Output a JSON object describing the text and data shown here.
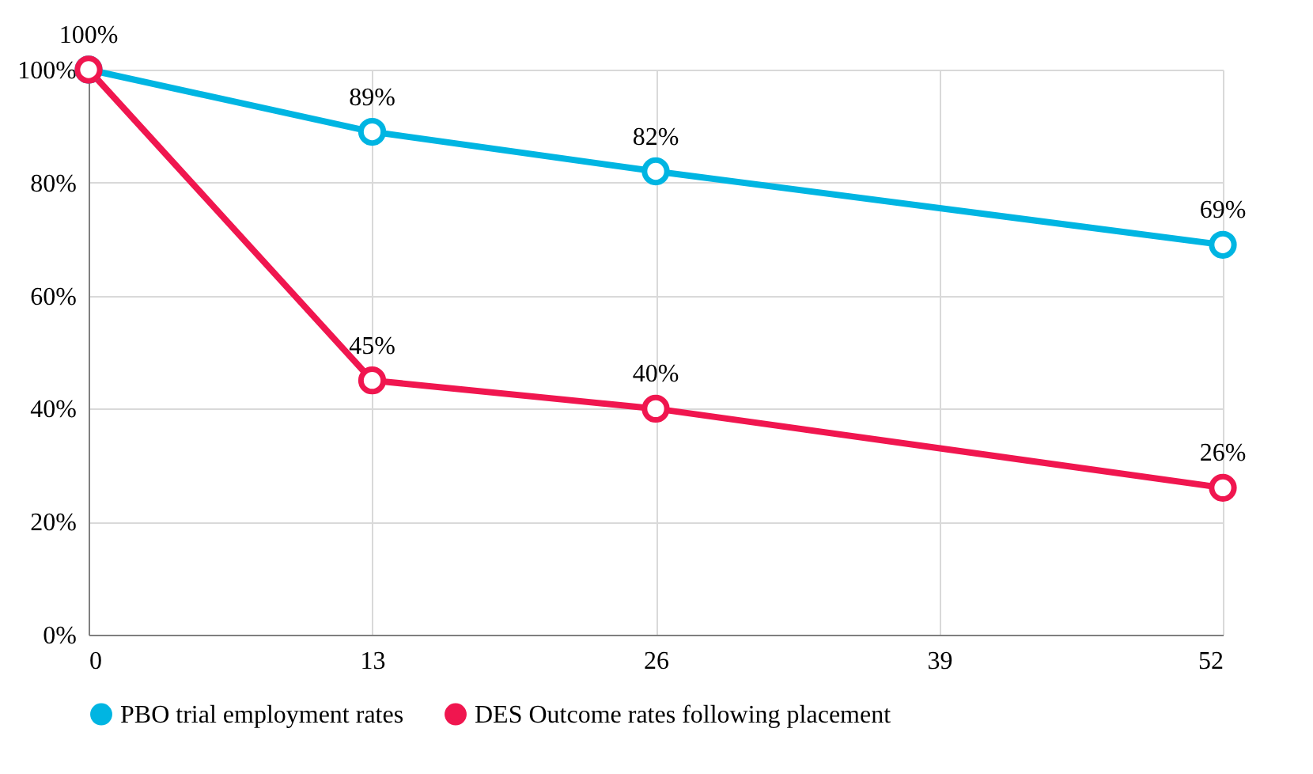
{
  "chart_data": {
    "type": "line",
    "x": [
      0,
      13,
      26,
      52
    ],
    "xlim": [
      0,
      52
    ],
    "xticks": [
      0,
      13,
      26,
      39,
      52
    ],
    "ylim": [
      0,
      100
    ],
    "yticks": [
      {
        "value": 0,
        "label": "0%"
      },
      {
        "value": 20,
        "label": "20%"
      },
      {
        "value": 40,
        "label": "40%"
      },
      {
        "value": 60,
        "label": "60%"
      },
      {
        "value": 80,
        "label": "80%"
      },
      {
        "value": 100,
        "label": "100%"
      }
    ],
    "series": [
      {
        "name": "PBO trial employment rates",
        "color": "#00b5e2",
        "values": [
          100,
          89,
          82,
          69
        ],
        "value_labels": [
          null,
          "89%",
          "82%",
          "69%"
        ]
      },
      {
        "name": "DES Outcome rates following placement",
        "color": "#f0164f",
        "values": [
          100,
          45,
          40,
          26
        ],
        "value_labels": [
          "100%",
          "45%",
          "40%",
          "26%"
        ]
      }
    ],
    "grid": true,
    "legend": "bottom",
    "marker": "circle",
    "line_style": "solid"
  }
}
